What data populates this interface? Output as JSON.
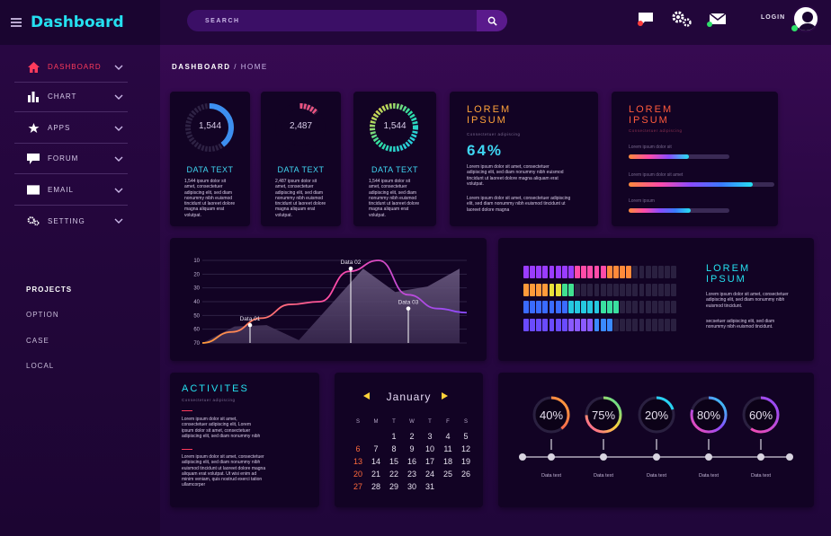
{
  "app": {
    "title": "Dashboard"
  },
  "header": {
    "search_placeholder": "SEARCH",
    "login_label": "LOGIN",
    "icons": [
      "chat-icon",
      "gear-icon",
      "mail-icon",
      "user-avatar"
    ]
  },
  "breadcrumb": {
    "root": "DASHBOARD",
    "separator": "/",
    "current": "HOME"
  },
  "sidebar": {
    "items": [
      {
        "label": "DASHBOARD",
        "icon": "home-icon"
      },
      {
        "label": "CHART",
        "icon": "bar-chart-icon"
      },
      {
        "label": "APPS",
        "icon": "star-icon"
      },
      {
        "label": "FORUM",
        "icon": "speech-bubble-icon"
      },
      {
        "label": "EMAIL",
        "icon": "envelope-icon"
      },
      {
        "label": "SETTING",
        "icon": "gears-icon"
      }
    ],
    "projects_title": "PROJECTS",
    "projects": [
      "OPTION",
      "CASE",
      "LOCAL"
    ]
  },
  "gauges": [
    {
      "value": "1,544",
      "title": "DATA TEXT",
      "text": "1,544 ipsum dolor sit amet, consectetuer adipiscing elit, sed diam nonummy nibh euismod tincidunt ut laoreet dolore magna aliquam erat volutpat."
    },
    {
      "value": "2,487",
      "title": "DATA TEXT",
      "text": "2,487 ipsum dolor sit amet, consectetuer adipiscing elit, sed diam nonummy nibh euismod tincidunt ut laoreet dolore magna aliquam erat volutpat."
    },
    {
      "value": "1,544",
      "title": "DATA TEXT",
      "text": "1,544 ipsum dolor sit amet, consectetuer adipiscing elit, sed diam nonummy nibh euismod tincidunt ut laoreet dolore magna aliquam erat volutpat."
    }
  ],
  "lorem_percent": {
    "title_line1": "LOREM",
    "title_line2": "IPSUM",
    "subtitle": "Consectetuer adipiscing",
    "percent": "64%",
    "text1": "Lorem ipsum dolor sit amet, consectetuer adipiscing elit, sed diam nonummy nibh euismod tincidunt ut laoreet dolore magna aliquam erat volutpat.",
    "text2": "Lorem ipsum dolor sit amet, consectetuer adipiscing elit, sed diam nonummy nibh euismod tincidunt ut laoreet dolore magna"
  },
  "lorem_bars": {
    "title_line1": "LOREM",
    "title_line2": "IPSUM",
    "subtitle": "Consectetuer adipiscing",
    "bars": [
      {
        "label": "Lorem ipsum dolor sit",
        "fraction": 0.6
      },
      {
        "label": "Lorem ipsum dolor sit amet",
        "fraction": 0.85
      },
      {
        "label": "Lorem ipsum",
        "fraction": 0.62
      }
    ]
  },
  "line_chart": {
    "ytick_labels": [
      "10",
      "20",
      "30",
      "40",
      "50",
      "60",
      "70"
    ],
    "annotations": [
      "Data 01",
      "Data 02",
      "Data 03"
    ]
  },
  "chart_data": {
    "type": "line",
    "ytick_labels": [
      "10",
      "20",
      "30",
      "40",
      "50",
      "60",
      "70"
    ],
    "series": [
      {
        "values": [
          70,
          58,
          57,
          68,
          42,
          16,
          33,
          29,
          16
        ]
      },
      {
        "values": [
          70,
          62,
          52,
          42,
          40,
          18,
          10,
          35,
          45,
          48
        ]
      }
    ],
    "annotations": [
      {
        "label": "Data 01",
        "value": 57
      },
      {
        "label": "Data 02",
        "value": 16
      },
      {
        "label": "Data 03",
        "value": 45
      }
    ]
  },
  "equalizer": {
    "title_line1": "LOREM",
    "title_line2": "IPSUM",
    "text1": "Lorem ipsum dolor sit amet, consectetuer adipiscing elit, sed diam nonummy nibh euismod tincidunt.",
    "text2": "secsetuer adipiscing elit, sed diam nonummy nibh euismod tincidunt.",
    "rows": [
      {
        "lit_fraction": 0.72
      },
      {
        "lit_fraction": 0.34
      },
      {
        "lit_fraction": 0.63
      },
      {
        "lit_fraction": 0.6
      }
    ]
  },
  "activities": {
    "title": "ACTIVITES",
    "subtitle": "Consectetuer adipiscing",
    "text1": "Lorem ipsum dolor sit amet, consectetuer adipiscing elit, Lorem ipsum dolor sit amet, consectetuer adipiscing elit, sed diam nonummy nibh",
    "text2": "Lorem ipsum dolor sit amet, consectetuer adipiscing elit, sed diam nonummy nibh euismod tincidunt ut laoreet dolore magna aliquam erat volutpat. Ut wisi enim ad minim veniam, quis nostrud exerci tation ullamcorper"
  },
  "calendar": {
    "month": "January",
    "weekdays": [
      "S",
      "M",
      "T",
      "W",
      "T",
      "F",
      "S"
    ],
    "days": [
      "",
      "",
      "1",
      "2",
      "3",
      "4",
      "5",
      "6",
      "7",
      "8",
      "9",
      "10",
      "11",
      "12",
      "13",
      "14",
      "15",
      "16",
      "17",
      "18",
      "19",
      "20",
      "21",
      "22",
      "23",
      "24",
      "25",
      "26",
      "27",
      "28",
      "29",
      "30",
      "31",
      "",
      ""
    ]
  },
  "timeline": {
    "items": [
      {
        "percent": "40%",
        "value": 40,
        "label": "Data text"
      },
      {
        "percent": "75%",
        "value": 75,
        "label": "Data text"
      },
      {
        "percent": "20%",
        "value": 20,
        "label": "Data text"
      },
      {
        "percent": "80%",
        "value": 80,
        "label": "Data text"
      },
      {
        "percent": "60%",
        "value": 60,
        "label": "Data text"
      }
    ]
  },
  "colors": {
    "accent_cyan": "#25e0f0",
    "accent_red": "#ff3b5c",
    "accent_orange": "#ffa23a",
    "accent_pink": "#ff4ba8",
    "accent_purple": "#8a4bff"
  }
}
